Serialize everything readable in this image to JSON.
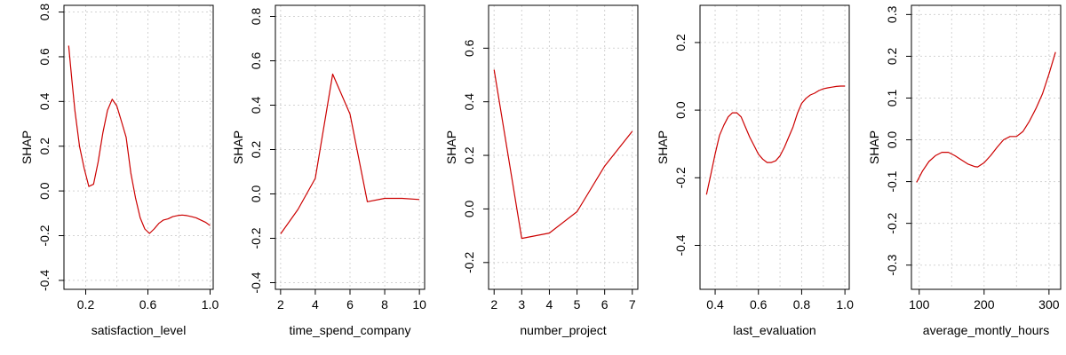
{
  "chart_data": [
    {
      "type": "line",
      "xlabel": "satisfaction_level",
      "ylabel": "SHAP",
      "xlim": [
        0.06,
        1.02
      ],
      "ylim": [
        -0.44,
        0.83
      ],
      "xticks": [
        0.2,
        0.6,
        1.0
      ],
      "xtick_labels": [
        "0.2",
        "0.6",
        "1.0"
      ],
      "xgrid": [
        0.2,
        0.4,
        0.6,
        0.8,
        1.0
      ],
      "yticks": [
        -0.4,
        -0.2,
        0.0,
        0.2,
        0.4,
        0.6,
        0.8
      ],
      "ytick_labels": [
        "-0.4",
        "-0.2",
        "0.0",
        "0.2",
        "0.4",
        "0.6",
        "0.8"
      ],
      "grid": true,
      "line_color": "#cc0000",
      "series": [
        {
          "x": [
            0.09,
            0.11,
            0.13,
            0.16,
            0.19,
            0.22,
            0.25,
            0.28,
            0.31,
            0.34,
            0.37,
            0.4,
            0.43,
            0.46,
            0.49,
            0.52,
            0.55,
            0.58,
            0.61,
            0.64,
            0.67,
            0.7,
            0.73,
            0.76,
            0.79,
            0.82,
            0.85,
            0.88,
            0.91,
            0.94,
            0.97,
            1.0
          ],
          "y": [
            0.65,
            0.5,
            0.36,
            0.2,
            0.1,
            0.02,
            0.03,
            0.13,
            0.26,
            0.36,
            0.41,
            0.38,
            0.31,
            0.24,
            0.08,
            -0.03,
            -0.12,
            -0.17,
            -0.19,
            -0.17,
            -0.145,
            -0.13,
            -0.125,
            -0.115,
            -0.11,
            -0.108,
            -0.11,
            -0.115,
            -0.12,
            -0.13,
            -0.14,
            -0.155
          ]
        }
      ]
    },
    {
      "type": "line",
      "xlabel": "time_spend_company",
      "ylabel": "SHAP",
      "xlim": [
        1.7,
        10.3
      ],
      "ylim": [
        -0.43,
        0.85
      ],
      "xticks": [
        2,
        4,
        6,
        8,
        10
      ],
      "xtick_labels": [
        "2",
        "4",
        "6",
        "8",
        "10"
      ],
      "xgrid": [
        2,
        4,
        6,
        8,
        10
      ],
      "yticks": [
        -0.4,
        -0.2,
        0.0,
        0.2,
        0.4,
        0.6,
        0.8
      ],
      "ytick_labels": [
        "-0.4",
        "-0.2",
        "0.0",
        "0.2",
        "0.4",
        "0.6",
        "0.8"
      ],
      "grid": true,
      "line_color": "#cc0000",
      "series": [
        {
          "x": [
            2,
            3,
            4,
            5,
            6,
            7,
            8,
            9,
            10
          ],
          "y": [
            -0.18,
            -0.07,
            0.07,
            0.54,
            0.36,
            -0.035,
            -0.02,
            -0.02,
            -0.025
          ]
        }
      ]
    },
    {
      "type": "line",
      "xlabel": "number_project",
      "ylabel": "SHAP",
      "xlim": [
        1.8,
        7.2
      ],
      "ylim": [
        -0.3,
        0.76
      ],
      "xticks": [
        2,
        3,
        4,
        5,
        6,
        7
      ],
      "xtick_labels": [
        "2",
        "3",
        "4",
        "5",
        "6",
        "7"
      ],
      "xgrid": [
        2,
        3,
        4,
        5,
        6,
        7
      ],
      "yticks": [
        -0.2,
        0.0,
        0.2,
        0.4,
        0.6
      ],
      "ytick_labels": [
        "-0.2",
        "0.0",
        "0.2",
        "0.4",
        "0.6"
      ],
      "grid": true,
      "line_color": "#cc0000",
      "series": [
        {
          "x": [
            2,
            3,
            4,
            5,
            6,
            7
          ],
          "y": [
            0.52,
            -0.11,
            -0.09,
            -0.01,
            0.16,
            0.29
          ]
        }
      ]
    },
    {
      "type": "line",
      "xlabel": "last_evaluation",
      "ylabel": "SHAP",
      "xlim": [
        0.33,
        1.02
      ],
      "ylim": [
        -0.53,
        0.31
      ],
      "xticks": [
        0.4,
        0.6,
        0.8,
        1.0
      ],
      "xtick_labels": [
        "0.4",
        "0.6",
        "0.8",
        "1.0"
      ],
      "xgrid": [
        0.4,
        0.5,
        0.6,
        0.7,
        0.8,
        0.9,
        1.0
      ],
      "yticks": [
        -0.4,
        -0.2,
        0.0,
        0.2
      ],
      "ytick_labels": [
        "-0.4",
        "-0.2",
        "0.0",
        "0.2"
      ],
      "grid": true,
      "line_color": "#cc0000",
      "series": [
        {
          "x": [
            0.36,
            0.38,
            0.4,
            0.42,
            0.44,
            0.46,
            0.48,
            0.5,
            0.52,
            0.54,
            0.56,
            0.58,
            0.6,
            0.62,
            0.64,
            0.66,
            0.68,
            0.7,
            0.72,
            0.74,
            0.76,
            0.78,
            0.8,
            0.82,
            0.84,
            0.86,
            0.88,
            0.9,
            0.92,
            0.94,
            0.96,
            0.98,
            1.0
          ],
          "y": [
            -0.25,
            -0.19,
            -0.13,
            -0.075,
            -0.045,
            -0.02,
            -0.008,
            -0.008,
            -0.02,
            -0.05,
            -0.08,
            -0.105,
            -0.13,
            -0.145,
            -0.155,
            -0.155,
            -0.15,
            -0.135,
            -0.11,
            -0.08,
            -0.05,
            -0.01,
            0.02,
            0.035,
            0.045,
            0.05,
            0.058,
            0.063,
            0.066,
            0.068,
            0.07,
            0.071,
            0.071
          ]
        }
      ]
    },
    {
      "type": "line",
      "xlabel": "average_montly_hours",
      "ylabel": "SHAP",
      "xlim": [
        88,
        318
      ],
      "ylim": [
        -0.358,
        0.322
      ],
      "xticks": [
        100,
        200,
        300
      ],
      "xtick_labels": [
        "100",
        "200",
        "300"
      ],
      "xgrid": [
        100,
        150,
        200,
        250,
        300
      ],
      "yticks": [
        -0.3,
        -0.2,
        -0.1,
        0.0,
        0.1,
        0.2,
        0.3
      ],
      "ytick_labels": [
        "-0.3",
        "-0.2",
        "-0.1",
        "0.0",
        "0.1",
        "0.2",
        "0.3"
      ],
      "grid": true,
      "line_color": "#cc0000",
      "series": [
        {
          "x": [
            96,
            105,
            115,
            125,
            135,
            145,
            155,
            165,
            175,
            185,
            190,
            200,
            210,
            220,
            230,
            240,
            250,
            260,
            270,
            280,
            290,
            300,
            310
          ],
          "y": [
            -0.102,
            -0.075,
            -0.052,
            -0.038,
            -0.03,
            -0.03,
            -0.038,
            -0.048,
            -0.058,
            -0.064,
            -0.065,
            -0.055,
            -0.038,
            -0.018,
            0.0,
            0.008,
            0.008,
            0.02,
            0.045,
            0.075,
            0.11,
            0.158,
            0.21
          ]
        }
      ]
    }
  ]
}
